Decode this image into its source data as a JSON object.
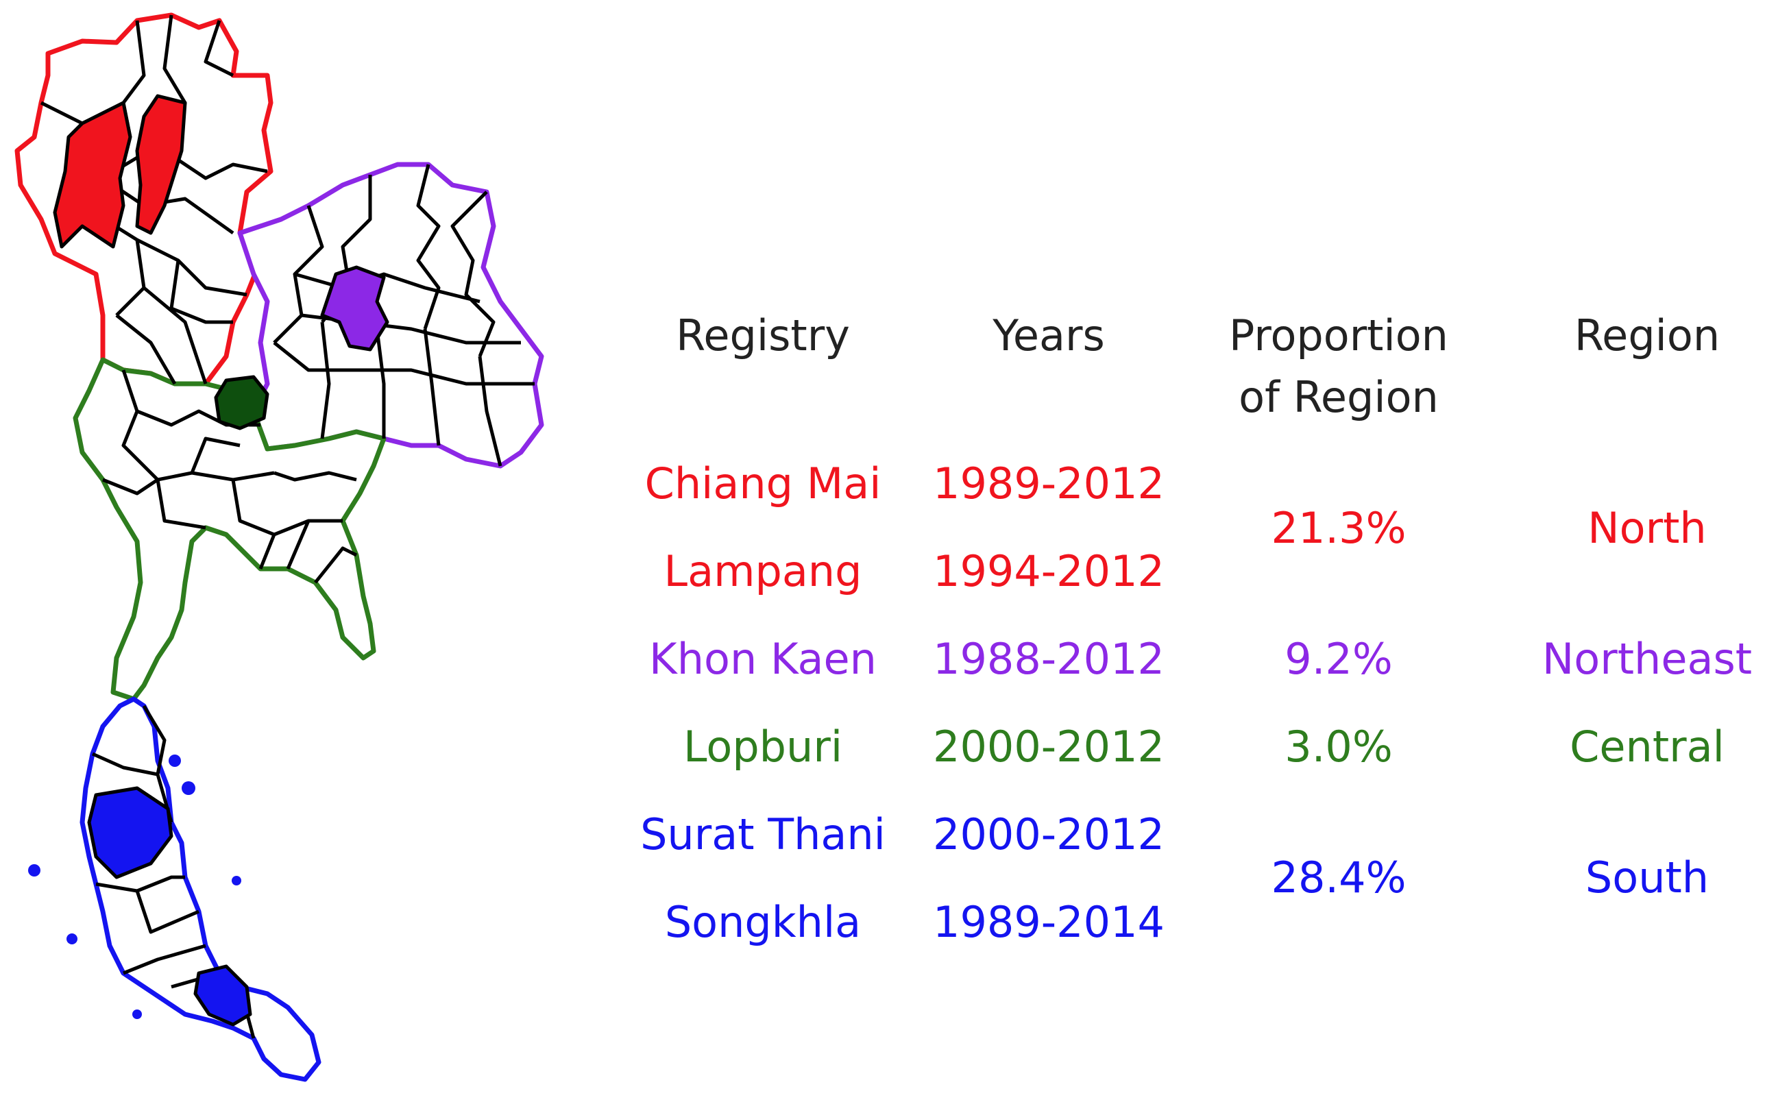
{
  "colors": {
    "north": "#f0141e",
    "northeast": "#8c28e6",
    "central": "#2e7d1e",
    "central_fill": "#0e4f0e",
    "south": "#1414f0",
    "border": "#000000"
  },
  "headers": {
    "registry": "Registry",
    "years": "Years",
    "proportion_line1": "Proportion",
    "proportion_line2": "of Region",
    "region": "Region"
  },
  "registries": [
    {
      "name": "Chiang Mai",
      "years": "1989-2012",
      "region_key": "north"
    },
    {
      "name": "Lampang",
      "years": "1994-2012",
      "region_key": "north"
    },
    {
      "name": "Khon Kaen",
      "years": "1988-2012",
      "region_key": "northeast"
    },
    {
      "name": "Lopburi",
      "years": "2000-2012",
      "region_key": "central"
    },
    {
      "name": "Surat Thani",
      "years": "2000-2012",
      "region_key": "south"
    },
    {
      "name": "Songkhla",
      "years": "1989-2014",
      "region_key": "south"
    }
  ],
  "regions": [
    {
      "name": "North",
      "proportion": "21.3%",
      "key": "north"
    },
    {
      "name": "Northeast",
      "proportion": "9.2%",
      "key": "northeast"
    },
    {
      "name": "Central",
      "proportion": "3.0%",
      "key": "central"
    },
    {
      "name": "South",
      "proportion": "28.4%",
      "key": "south"
    }
  ]
}
